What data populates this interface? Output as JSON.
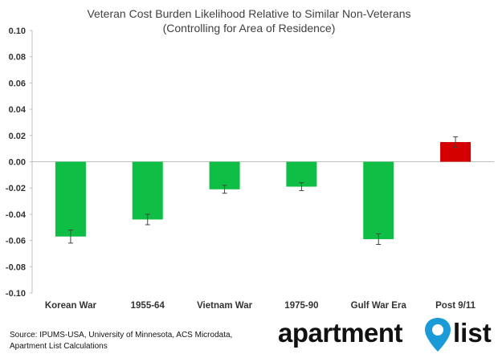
{
  "chart_data": {
    "type": "bar",
    "title": "Veteran Cost Burden Likelihood Relative to Similar Non-Veterans",
    "subtitle": "(Controlling for Area of Residence)",
    "categories": [
      "Korean War",
      "1955-64",
      "Vietnam War",
      "1975-90",
      "Gulf War Era",
      "Post 9/11"
    ],
    "values": [
      -0.057,
      -0.044,
      -0.021,
      -0.019,
      -0.059,
      0.015
    ],
    "error": [
      0.005,
      0.004,
      0.003,
      0.003,
      0.004,
      0.004
    ],
    "colors": [
      "#0fbf45",
      "#0fbf45",
      "#0fbf45",
      "#0fbf45",
      "#0fbf45",
      "#d40000"
    ],
    "ylim": [
      -0.1,
      0.1
    ],
    "yticks": [
      "0.10",
      "0.08",
      "0.06",
      "0.04",
      "0.02",
      "0.00",
      "-0.02",
      "-0.04",
      "-0.06",
      "-0.08",
      "-0.10"
    ],
    "grid": false,
    "legend": "none"
  },
  "source": {
    "line1": "Source: IPUMS-USA, University of Minnesota, ACS Microdata,",
    "line2": "Apartment List Calculations"
  },
  "logo": {
    "word1": "apartment",
    "word2": "list",
    "pin_color": "#1a9bd7"
  }
}
